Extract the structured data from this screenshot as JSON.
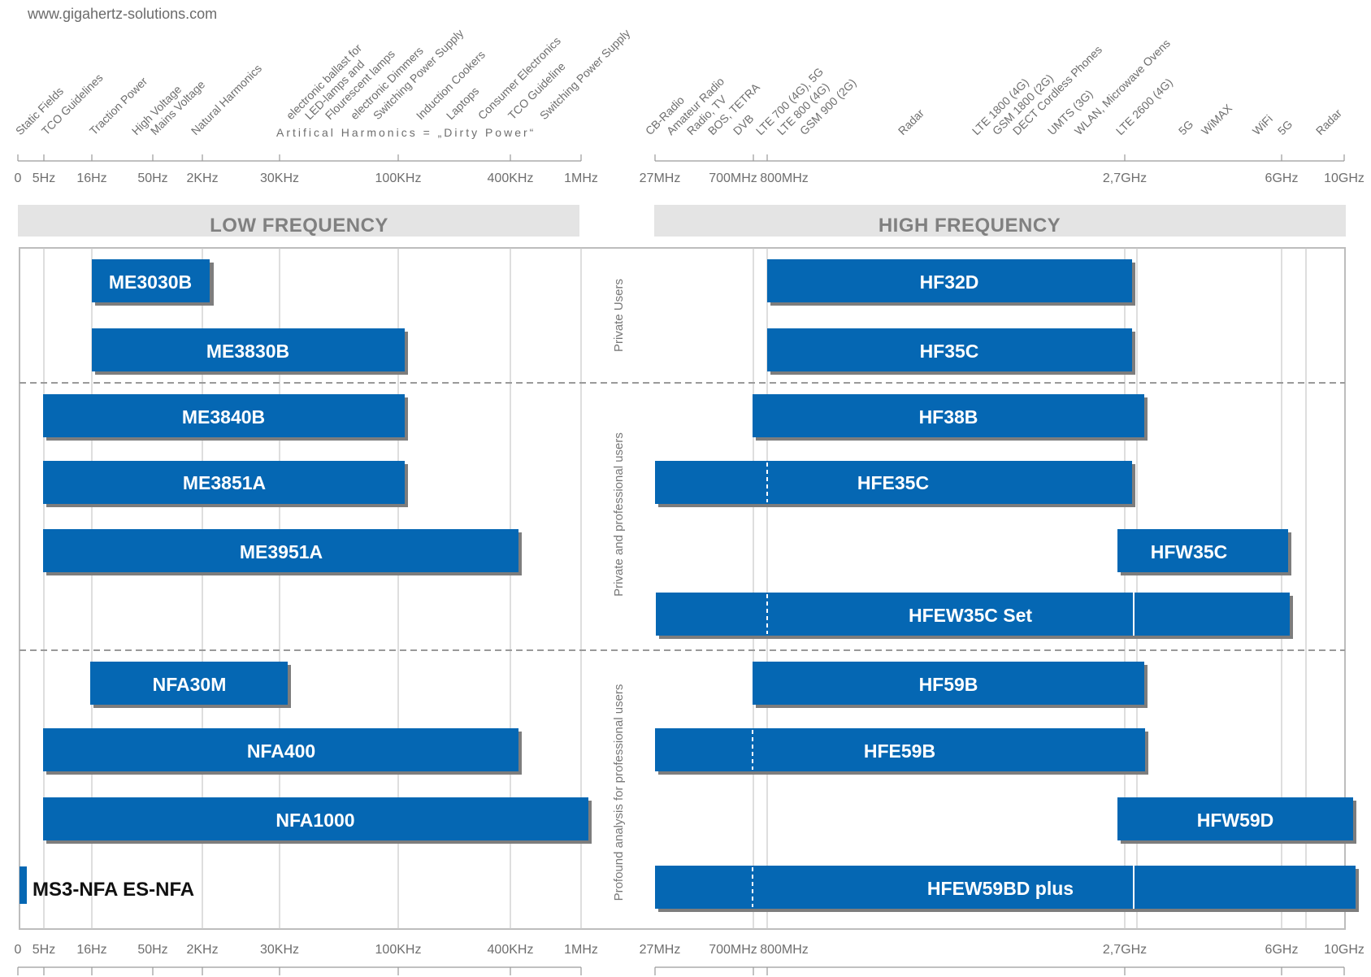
{
  "site": "www.gigahertz-solutions.com",
  "sections": {
    "low": "LOW FREQUENCY",
    "high": "HIGH FREQUENCY"
  },
  "ticks_low": [
    "0",
    "5Hz",
    "16Hz",
    "50Hz",
    "2KHz",
    "30KHz",
    "100KHz",
    "400KHz",
    "1MHz"
  ],
  "ticks_high": [
    "27MHz",
    "700MHz",
    "800MHz",
    "2,7GHz",
    "6GHz",
    "10GHz"
  ],
  "applications_low": [
    "Static Fields",
    "TCO Guidelines",
    "Traction Power",
    "High Voltage",
    "Mains Voltage",
    "Natural Harmonics",
    "electronic ballast for",
    "LED-lamps and",
    "Flourescent lamps",
    "electronic Dimmers",
    "Switching Power Supply",
    "Induction Cookers",
    "Laptops",
    "Consumer Electronics",
    "TCO Guideline",
    "Switching Power Supply"
  ],
  "artificial_harmonics": "Artifical Harmonics  =  „Dirty Power“",
  "applications_high": [
    "CB-Radio",
    "Amateur Radio",
    "Radio, TV",
    "BOS, TETRA",
    "DVB",
    "LTE 700 (4G), 5G",
    "LTE 800 (4G)",
    "GSM 900 (2G)",
    "Radar",
    "LTE 1800 (4G)",
    "GSM 1800 (2G)",
    "DECT Cordless Phones",
    "UMTS (3G)",
    "WLAN, Microwave Ovens",
    "LTE 2600 (4G)",
    "5G",
    "WiMAX",
    "WiFi",
    "5G",
    "Radar"
  ],
  "groups": [
    "Private Users",
    "Private and professional users",
    "Profound analysis for professional users"
  ],
  "low_bars": [
    "ME3030B",
    "ME3830B",
    "ME3840B",
    "ME3851A",
    "ME3951A",
    "NFA30M",
    "NFA400",
    "NFA1000"
  ],
  "high_bars": [
    "HF32D",
    "HF35C",
    "HF38B",
    "HFE35C",
    "HFW35C",
    "HFEW35C Set",
    "HF59B",
    "HFE59B",
    "HFW59D",
    "HFEW59BD plus"
  ],
  "extra": "MS3-NFA  ES-NFA",
  "colors": {
    "bar": "#0567b3",
    "bar_shadow": "#7d7d7d",
    "section_band": "#e4e4e4",
    "frame": "#bdbdbd",
    "divider": "#9a9a9a",
    "text": "#6e6e6e"
  }
}
